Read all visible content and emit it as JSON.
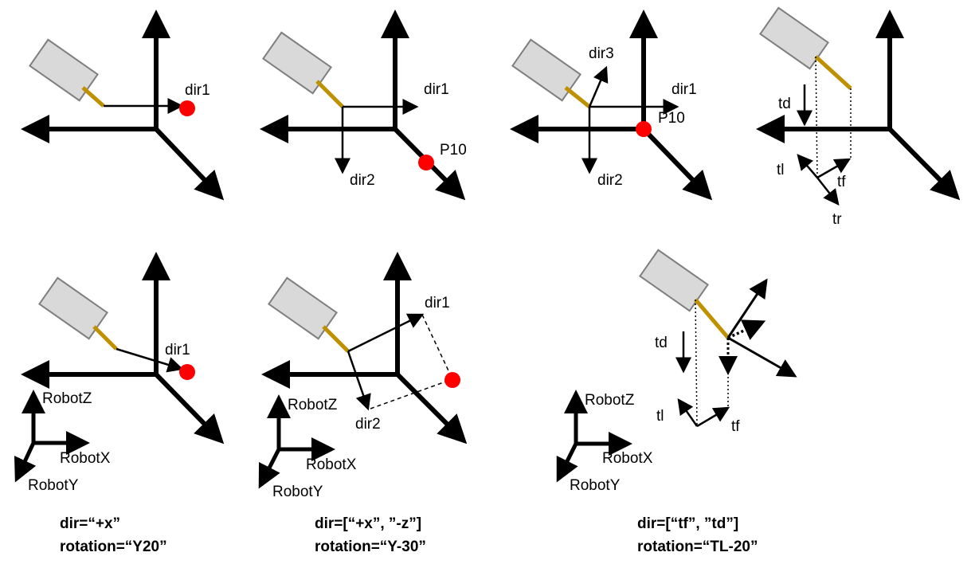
{
  "colors": {
    "stroke": "#000000",
    "target_point": "#ff0000",
    "torch_body": "#d9d9d9",
    "torch_body_border": "#7f7f7f",
    "torch_wire": "#bf9000",
    "background": "#ffffff"
  },
  "panel1": {
    "dir1": "dir1"
  },
  "panel2": {
    "dir1": "dir1",
    "dir2": "dir2",
    "point": "P10"
  },
  "panel3": {
    "dir1": "dir1",
    "dir2": "dir2",
    "dir3": "dir3",
    "point": "P10"
  },
  "panel4": {
    "td": "td",
    "tl": "tl",
    "tf": "tf",
    "tr": "tr"
  },
  "panel5": {
    "dir1": "dir1",
    "robot_z": "RobotZ",
    "robot_x": "RobotX",
    "robot_y": "RobotY",
    "caption_dir": "dir=“+x”",
    "caption_rotation": "rotation=“Y20”"
  },
  "panel6": {
    "dir1": "dir1",
    "dir2": "dir2",
    "robot_z": "RobotZ",
    "robot_x": "RobotX",
    "robot_y": "RobotY",
    "caption_dir": "dir=[“+x”, ”-z”]",
    "caption_rotation": "rotation=“Y-30”"
  },
  "panel7": {
    "td": "td",
    "tl": "tl",
    "tf": "tf",
    "robot_z": "RobotZ",
    "robot_x": "RobotX",
    "robot_y": "RobotY",
    "caption_dir": "dir=[“tf”, ”td”]",
    "caption_rotation": "rotation=“TL-20”"
  }
}
